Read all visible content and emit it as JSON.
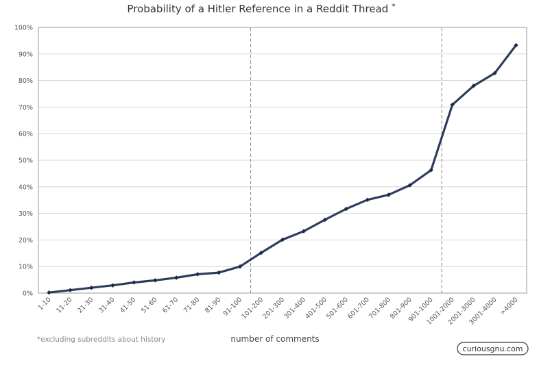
{
  "chart_data": {
    "type": "line",
    "title": "Probability of a Hitler Reference in a Reddit Thread",
    "title_mark": "*",
    "xlabel": "number of comments",
    "ylabel": "",
    "ylim": [
      0,
      100
    ],
    "y_ticks": [
      "0%",
      "10%",
      "20%",
      "30%",
      "40%",
      "50%",
      "60%",
      "70%",
      "80%",
      "90%",
      "100%"
    ],
    "grid": true,
    "categories": [
      "1-10",
      "11-20",
      "21-30",
      "31-40",
      "41-50",
      "51-60",
      "61-70",
      "71-80",
      "81-90",
      "91-100",
      "101-200",
      "201-300",
      "301-400",
      "401-500",
      "501-600",
      "601-700",
      "701-800",
      "801-900",
      "901-1000",
      "1001-2000",
      "2001-3000",
      "3001-4000",
      ">4000"
    ],
    "values": [
      0.2,
      1.1,
      2.0,
      2.9,
      4.0,
      4.8,
      5.8,
      7.1,
      7.7,
      10.0,
      15.2,
      20.1,
      23.3,
      27.6,
      31.7,
      35.1,
      37.0,
      40.6,
      46.3,
      70.9,
      78.0,
      82.8,
      93.3
    ],
    "reference_lines_after": [
      "91-100",
      "901-1000"
    ],
    "footnote": "*excluding subreddits about history",
    "line_color": "#2e3d5e",
    "grid_color": "#d6d6d6",
    "axis_color": "#999999"
  },
  "watermark": "curiousgnu.com"
}
